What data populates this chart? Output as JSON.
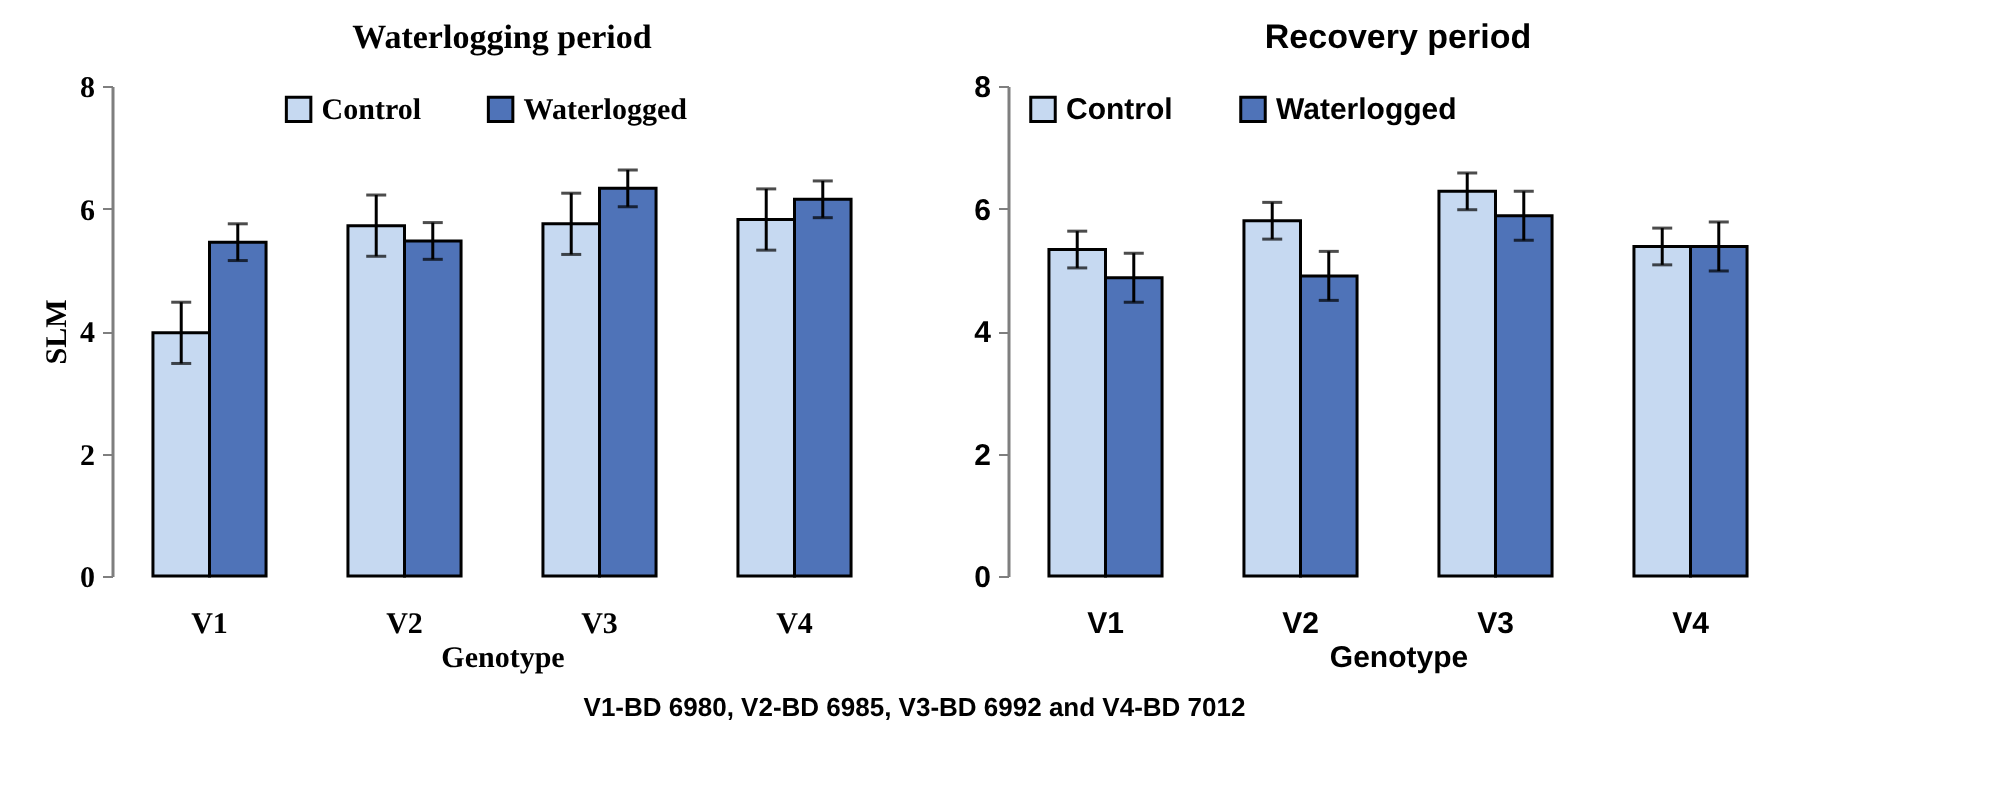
{
  "chart_data": [
    {
      "type": "bar",
      "title": "Waterlogging period",
      "xlabel": "Genotype",
      "ylabel": "SLM",
      "categories": [
        "V1",
        "V2",
        "V3",
        "V4"
      ],
      "series": [
        {
          "name": "Control",
          "color": "#c6d9f1",
          "values": [
            3.97,
            5.72,
            5.75,
            5.82
          ],
          "errors": [
            0.5,
            0.5,
            0.5,
            0.5
          ]
        },
        {
          "name": "Waterlogged",
          "color": "#4f73b8",
          "values": [
            5.45,
            5.47,
            6.33,
            6.15
          ],
          "errors": [
            0.3,
            0.3,
            0.3,
            0.3
          ]
        }
      ],
      "ylim": [
        0,
        8
      ],
      "yticks": [
        0,
        2,
        4,
        6,
        8
      ],
      "grid": false,
      "legend": "top"
    },
    {
      "type": "bar",
      "title": "Recovery period",
      "xlabel": "Genotype",
      "categories": [
        "V1",
        "V2",
        "V3",
        "V4"
      ],
      "series": [
        {
          "name": "Control",
          "color": "#c6d9f1",
          "values": [
            5.33,
            5.8,
            6.28,
            5.38
          ],
          "errors": [
            0.3,
            0.3,
            0.3,
            0.3
          ]
        },
        {
          "name": "Waterlogged",
          "color": "#4f73b8",
          "values": [
            4.87,
            4.9,
            5.88,
            5.38
          ],
          "errors": [
            0.4,
            0.4,
            0.4,
            0.4
          ]
        }
      ],
      "ylim": [
        0,
        8
      ],
      "yticks": [
        0,
        2,
        4,
        6,
        8
      ],
      "grid": false,
      "legend": "top left",
      "annotations": [
        "V1-BD 6980, V2-BD 6985, V3-BD 6992 and V4-BD 7012"
      ]
    }
  ]
}
